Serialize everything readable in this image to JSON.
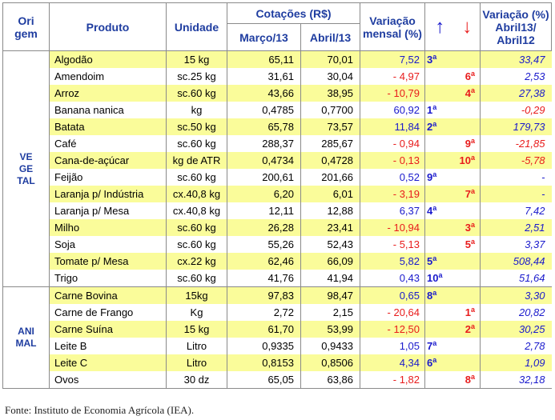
{
  "header": {
    "origem": [
      "Ori",
      "gem"
    ],
    "produto": "Produto",
    "unidade": "Unidade",
    "cotacoes": "Cotações (R$)",
    "marco": "Março/13",
    "abril": "Abril/13",
    "variacao_mensal": [
      "Variação",
      "mensal (%)"
    ],
    "arrow_up": "↑",
    "arrow_down": "↓",
    "variacao_anual": [
      "Variação (%)",
      "Abril13/",
      "Abril12"
    ]
  },
  "groups": [
    {
      "origin": [
        "VE",
        "GE",
        "TAL"
      ],
      "rows": [
        {
          "produto": "Algodão",
          "unidade": "15 kg",
          "marco": "65,11",
          "abril": "70,01",
          "var": "7,52",
          "up": "3",
          "down": "",
          "anual": "33,47"
        },
        {
          "produto": "Amendoim",
          "unidade": "sc.25 kg",
          "marco": "31,61",
          "abril": "30,04",
          "var": "- 4,97",
          "up": "",
          "down": "6",
          "anual": "2,53"
        },
        {
          "produto": "Arroz",
          "unidade": "sc.60 kg",
          "marco": "43,66",
          "abril": "38,95",
          "var": "- 10,79",
          "up": "",
          "down": "4",
          "anual": "27,38"
        },
        {
          "produto": "Banana nanica",
          "unidade": "kg",
          "marco": "0,4785",
          "abril": "0,7700",
          "var": "60,92",
          "up": "1",
          "down": "",
          "anual": "-0,29"
        },
        {
          "produto": "Batata",
          "unidade": "sc.50 kg",
          "marco": "65,78",
          "abril": "73,57",
          "var": "11,84",
          "up": "2",
          "down": "",
          "anual": "179,73"
        },
        {
          "produto": "Café",
          "unidade": "sc.60 kg",
          "marco": "288,37",
          "abril": "285,67",
          "var": "- 0,94",
          "up": "",
          "down": "9",
          "anual": "-21,85"
        },
        {
          "produto": "Cana-de-açúcar",
          "unidade": "kg de ATR",
          "marco": "0,4734",
          "abril": "0,4728",
          "var": "- 0,13",
          "up": "",
          "down": "10",
          "anual": "-5,78"
        },
        {
          "produto": "Feijão",
          "unidade": "sc.60 kg",
          "marco": "200,61",
          "abril": "201,66",
          "var": "0,52",
          "up": "9",
          "down": "",
          "anual": "-"
        },
        {
          "produto": "Laranja p/ Indústria",
          "unidade": "cx.40,8 kg",
          "marco": "6,20",
          "abril": "6,01",
          "var": "- 3,19",
          "up": "",
          "down": "7",
          "anual": "-"
        },
        {
          "produto": "Laranja p/ Mesa",
          "unidade": "cx.40,8 kg",
          "marco": "12,11",
          "abril": "12,88",
          "var": "6,37",
          "up": "4",
          "down": "",
          "anual": "7,42"
        },
        {
          "produto": "Milho",
          "unidade": "sc.60 kg",
          "marco": "26,28",
          "abril": "23,41",
          "var": "- 10,94",
          "up": "",
          "down": "3",
          "anual": "2,51"
        },
        {
          "produto": "Soja",
          "unidade": "sc.60 kg",
          "marco": "55,26",
          "abril": "52,43",
          "var": "- 5,13",
          "up": "",
          "down": "5",
          "anual": "3,37"
        },
        {
          "produto": "Tomate p/ Mesa",
          "unidade": "cx.22 kg",
          "marco": "62,46",
          "abril": "66,09",
          "var": "5,82",
          "up": "5",
          "down": "",
          "anual": "508,44"
        },
        {
          "produto": "Trigo",
          "unidade": "sc.60 kg",
          "marco": "41,76",
          "abril": "41,94",
          "var": "0,43",
          "up": "10",
          "down": "",
          "anual": "51,64"
        }
      ]
    },
    {
      "origin": [
        "ANI",
        "MAL"
      ],
      "rows": [
        {
          "produto": "Carne Bovina",
          "unidade": "15kg",
          "marco": "97,83",
          "abril": "98,47",
          "var": "0,65",
          "up": "8",
          "down": "",
          "anual": "3,30"
        },
        {
          "produto": "Carne de Frango",
          "unidade": "Kg",
          "marco": "2,72",
          "abril": "2,15",
          "var": "- 20,64",
          "up": "",
          "down": "1",
          "anual": "20,82"
        },
        {
          "produto": "Carne Suína",
          "unidade": "15 kg",
          "marco": "61,70",
          "abril": "53,99",
          "var": "- 12,50",
          "up": "",
          "down": "2",
          "anual": "30,25"
        },
        {
          "produto": "Leite B",
          "unidade": "Litro",
          "marco": "0,9335",
          "abril": "0,9433",
          "var": "1,05",
          "up": "7",
          "down": "",
          "anual": "2,78"
        },
        {
          "produto": "Leite C",
          "unidade": "Litro",
          "marco": "0,8153",
          "abril": "0,8506",
          "var": "4,34",
          "up": "6",
          "down": "",
          "anual": "1,09"
        },
        {
          "produto": "Ovos",
          "unidade": "30 dz",
          "marco": "65,05",
          "abril": "63,86",
          "var": "- 1,82",
          "up": "",
          "down": "8",
          "anual": "32,18"
        }
      ]
    }
  ],
  "ordinal_suffix": "a",
  "source": "Fonte: Instituto de Economia Agrícola (IEA).",
  "colors": {
    "header_text": "#1f3da0",
    "row_highlight": "#fafc9a",
    "positive": "#1a1acc",
    "negative": "#e81c1c"
  }
}
